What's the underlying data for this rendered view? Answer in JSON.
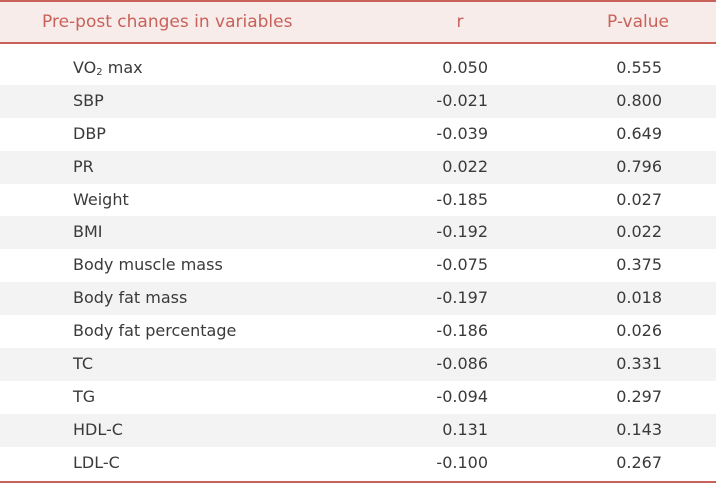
{
  "table": {
    "columns": [
      "Pre-post changes in variables",
      "r",
      "P-value"
    ],
    "rows": [
      {
        "variable": "VO",
        "sub": "2",
        "suffix": " max",
        "r": "0.050",
        "p": "0.555"
      },
      {
        "variable": "SBP",
        "r": "-0.021",
        "p": "0.800"
      },
      {
        "variable": "DBP",
        "r": "-0.039",
        "p": "0.649"
      },
      {
        "variable": "PR",
        "r": "0.022",
        "p": "0.796"
      },
      {
        "variable": "Weight",
        "r": "-0.185",
        "p": "0.027"
      },
      {
        "variable": "BMI",
        "r": "-0.192",
        "p": "0.022"
      },
      {
        "variable": "Body muscle mass",
        "r": "-0.075",
        "p": "0.375"
      },
      {
        "variable": "Body fat mass",
        "r": "-0.197",
        "p": "0.018"
      },
      {
        "variable": "Body fat percentage",
        "r": "-0.186",
        "p": "0.026"
      },
      {
        "variable": "TC",
        "r": "-0.086",
        "p": "0.331"
      },
      {
        "variable": "TG",
        "r": "-0.094",
        "p": "0.297"
      },
      {
        "variable": "HDL-C",
        "r": "0.131",
        "p": "0.143"
      },
      {
        "variable": "LDL-C",
        "r": "-0.100",
        "p": "0.267"
      }
    ]
  },
  "colors": {
    "accent": "#c8615a",
    "header_bg": "#f7ece9",
    "stripe_bg": "#f3f3f3",
    "text": "#3a3a3a"
  }
}
